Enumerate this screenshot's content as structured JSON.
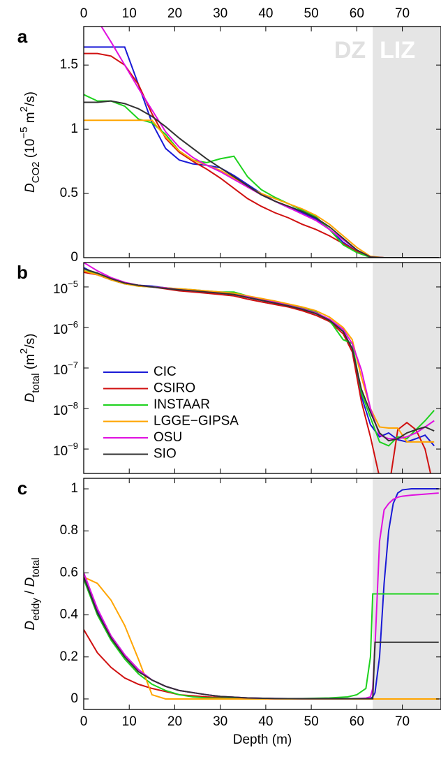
{
  "chart_data": [
    {
      "type": "line",
      "panel_label": "a",
      "ylabel": [
        {
          "text": "D",
          "style": "italic"
        },
        {
          "text": "CO2",
          "style": "sub"
        },
        {
          "text": " (10"
        },
        {
          "text": "−5",
          "style": "sup"
        },
        {
          "text": " m"
        },
        {
          "text": "2",
          "style": "sup"
        },
        {
          "text": "/s)"
        }
      ],
      "annotations": [
        "DZ",
        "LIZ"
      ],
      "lock_in_depth": 63.5,
      "xlim": [
        0,
        78.5
      ],
      "xticks": [
        0,
        10,
        20,
        30,
        40,
        50,
        60,
        70
      ],
      "xtick_side": "top",
      "ylim": [
        0,
        1.8
      ],
      "yticks": [
        0,
        0.5,
        1,
        1.5
      ],
      "x": [
        0,
        3,
        6,
        9,
        12,
        15,
        18,
        21,
        24,
        27,
        30,
        33,
        36,
        39,
        42,
        45,
        48,
        51,
        54,
        57,
        60,
        63,
        66,
        69,
        72,
        75,
        78
      ],
      "series": [
        {
          "name": "CIC",
          "color": "#1a1ad6",
          "values": [
            1.64,
            1.64,
            1.64,
            1.64,
            1.35,
            1.05,
            0.85,
            0.76,
            0.73,
            0.72,
            0.7,
            0.64,
            0.57,
            0.5,
            0.44,
            0.39,
            0.35,
            0.3,
            0.22,
            0.12,
            0.05,
            0.003,
            0,
            0,
            0,
            0,
            0
          ]
        },
        {
          "name": "CSIRO",
          "color": "#d01010",
          "values": [
            1.59,
            1.59,
            1.57,
            1.5,
            1.35,
            1.12,
            0.93,
            0.82,
            0.75,
            0.69,
            0.62,
            0.54,
            0.46,
            0.4,
            0.35,
            0.31,
            0.26,
            0.22,
            0.17,
            0.11,
            0.05,
            0.005,
            0,
            0,
            0,
            0,
            0
          ]
        },
        {
          "name": "INSTAAR",
          "color": "#1ed21e",
          "values": [
            1.27,
            1.22,
            1.22,
            1.18,
            1.08,
            1.05,
            0.96,
            0.83,
            0.76,
            0.74,
            0.77,
            0.79,
            0.63,
            0.53,
            0.47,
            0.42,
            0.37,
            0.32,
            0.22,
            0.1,
            0.04,
            0.002,
            0,
            0,
            0,
            0,
            0
          ]
        },
        {
          "name": "LGGE−GIPSA",
          "color": "#ffa500",
          "values": [
            1.07,
            1.07,
            1.07,
            1.07,
            1.07,
            1.07,
            0.94,
            0.83,
            0.76,
            0.72,
            0.68,
            0.62,
            0.55,
            0.5,
            0.46,
            0.42,
            0.38,
            0.33,
            0.26,
            0.17,
            0.08,
            0.01,
            0,
            0,
            0,
            0,
            0
          ]
        },
        {
          "name": "OSU",
          "color": "#e010e0",
          "values": [
            2.0,
            1.85,
            1.68,
            1.5,
            1.32,
            1.15,
            0.98,
            0.86,
            0.78,
            0.72,
            0.67,
            0.61,
            0.55,
            0.49,
            0.44,
            0.39,
            0.34,
            0.29,
            0.22,
            0.14,
            0.06,
            0.005,
            0,
            0,
            0,
            0,
            0
          ]
        },
        {
          "name": "SIO",
          "color": "#333333",
          "values": [
            1.21,
            1.21,
            1.22,
            1.2,
            1.16,
            1.1,
            1.02,
            0.93,
            0.85,
            0.77,
            0.7,
            0.63,
            0.56,
            0.49,
            0.44,
            0.4,
            0.36,
            0.31,
            0.24,
            0.15,
            0.06,
            0.005,
            0,
            0,
            0,
            0,
            0
          ]
        }
      ]
    },
    {
      "type": "line",
      "panel_label": "b",
      "yscale": "log",
      "legend": "center left",
      "ylabel": [
        {
          "text": "D",
          "style": "italic"
        },
        {
          "text": "total",
          "style": "sub"
        },
        {
          "text": " (m"
        },
        {
          "text": "2",
          "style": "sup"
        },
        {
          "text": "/s)"
        }
      ],
      "lock_in_depth": 63.5,
      "xlim": [
        0,
        78.5
      ],
      "xticks": [
        0,
        10,
        20,
        30,
        40,
        50,
        60,
        70
      ],
      "xtick_side": "none",
      "ylim": [
        2.5e-10,
        4e-05
      ],
      "yticks": [
        {
          "value": 1e-05,
          "label": "10",
          "exponent": "−5"
        },
        {
          "value": 1e-06,
          "label": "10",
          "exponent": "−6"
        },
        {
          "value": 1e-07,
          "label": "10",
          "exponent": "−7"
        },
        {
          "value": 1e-08,
          "label": "10",
          "exponent": "−8"
        },
        {
          "value": 1e-09,
          "label": "10",
          "exponent": "−9"
        }
      ],
      "x": [
        0,
        3,
        6,
        9,
        12,
        15,
        18,
        21,
        24,
        27,
        30,
        33,
        36,
        39,
        42,
        45,
        48,
        51,
        54,
        57,
        59,
        61,
        63,
        65,
        67,
        69,
        71,
        73,
        75,
        77
      ],
      "series": [
        {
          "name": "CIC",
          "color": "#1a1ad6",
          "values": [
            3e-05,
            2e-05,
            1.5e-05,
            1.2e-05,
            1.1e-05,
            1.05e-05,
            9.5e-06,
            8.5e-06,
            8e-06,
            7.5e-06,
            7e-06,
            6.5e-06,
            5.5e-06,
            4.7e-06,
            4e-06,
            3.4e-06,
            2.8e-06,
            2.2e-06,
            1.5e-06,
            8e-07,
            3e-07,
            2e-08,
            4e-09,
            2e-09,
            2.5e-09,
            1.7e-09,
            1.5e-09,
            1.8e-09,
            2.2e-09,
            1.2e-09
          ]
        },
        {
          "name": "CSIRO",
          "color": "#d01010",
          "values": [
            2.3e-05,
            2e-05,
            1.5e-05,
            1.2e-05,
            1.1e-05,
            1e-05,
            9e-06,
            8e-06,
            7.5e-06,
            7e-06,
            6.5e-06,
            6e-06,
            5e-06,
            4.3e-06,
            3.7e-06,
            3.2e-06,
            2.6e-06,
            2e-06,
            1.4e-06,
            7e-07,
            2.5e-07,
            1.5e-08,
            2e-09,
            2e-10,
            1e-10,
            3e-09,
            4.5e-09,
            3e-09,
            1e-09,
            1e-10
          ]
        },
        {
          "name": "INSTAAR",
          "color": "#1ed21e",
          "values": [
            2.5e-05,
            2.2e-05,
            1.5e-05,
            1.2e-05,
            1.05e-05,
            1e-05,
            9.5e-06,
            9e-06,
            8.5e-06,
            8e-06,
            7.5e-06,
            7.5e-06,
            6e-06,
            5e-06,
            4.3e-06,
            3.6e-06,
            3e-06,
            2.4e-06,
            1.5e-06,
            5e-07,
            4e-07,
            2.5e-08,
            6e-09,
            1.5e-09,
            1.2e-09,
            2e-09,
            1.8e-09,
            3e-09,
            5e-09,
            9e-09
          ]
        },
        {
          "name": "LGGE−GIPSA",
          "color": "#ffa500",
          "values": [
            2.5e-05,
            2e-05,
            1.5e-05,
            1.2e-05,
            1.05e-05,
            1e-05,
            9.5e-06,
            9e-06,
            8.5e-06,
            8e-06,
            7.5e-06,
            7e-06,
            6e-06,
            5.2e-06,
            4.5e-06,
            3.8e-06,
            3.2e-06,
            2.6e-06,
            1.8e-06,
            1e-06,
            5e-07,
            6e-08,
            1e-08,
            3.5e-09,
            3.3e-09,
            3.3e-09,
            1.5e-09,
            1.5e-09,
            1.5e-09,
            1.5e-09
          ]
        },
        {
          "name": "OSU",
          "color": "#e010e0",
          "values": [
            4e-05,
            2.5e-05,
            1.7e-05,
            1.3e-05,
            1.1e-05,
            1e-05,
            9.5e-06,
            8.5e-06,
            8e-06,
            7.5e-06,
            7e-06,
            6.5e-06,
            5.7e-06,
            4.8e-06,
            4.2e-06,
            3.5e-06,
            2.9e-06,
            2.3e-06,
            1.6e-06,
            9e-07,
            4e-07,
            9e-08,
            1e-08,
            2.2e-09,
            1.8e-09,
            1.8e-09,
            2e-09,
            2.5e-09,
            3.5e-09,
            5e-09
          ]
        },
        {
          "name": "SIO",
          "color": "#333333",
          "values": [
            2.8e-05,
            2.2e-05,
            1.6e-05,
            1.25e-05,
            1.1e-05,
            1e-05,
            9.2e-06,
            8.5e-06,
            8e-06,
            7.5e-06,
            7e-06,
            6.5e-06,
            5.5e-06,
            4.7e-06,
            4e-06,
            3.4e-06,
            2.8e-06,
            2.2e-06,
            1.5e-06,
            8e-07,
            3e-07,
            3e-08,
            8e-09,
            2.5e-09,
            1.6e-09,
            1.8e-09,
            2.5e-09,
            3e-09,
            3.5e-09,
            2.8e-09
          ]
        }
      ]
    },
    {
      "type": "line",
      "panel_label": "c",
      "ylabel": [
        {
          "text": "D",
          "style": "italic"
        },
        {
          "text": "eddy",
          "style": "sub"
        },
        {
          "text": " / "
        },
        {
          "text": "D",
          "style": "italic"
        },
        {
          "text": "total",
          "style": "sub"
        }
      ],
      "xlabel": "Depth (m)",
      "lock_in_depth": 63.5,
      "xlim": [
        0,
        78.5
      ],
      "xticks": [
        0,
        10,
        20,
        30,
        40,
        50,
        60,
        70
      ],
      "xtick_side": "bottom",
      "ylim": [
        -0.05,
        1.05
      ],
      "yticks": [
        0,
        0.2,
        0.4,
        0.6,
        0.8,
        1
      ],
      "x": [
        0,
        3,
        6,
        9,
        12,
        15,
        18,
        21,
        24,
        27,
        30,
        36,
        42,
        48,
        54,
        58,
        60,
        62,
        63,
        63.5,
        64,
        65,
        66,
        67,
        68,
        69,
        70,
        72,
        75,
        78
      ],
      "series": [
        {
          "name": "CIC",
          "color": "#1a1ad6",
          "values": [
            0.58,
            0.42,
            0.3,
            0.21,
            0.14,
            0.09,
            0.06,
            0.04,
            0.03,
            0.02,
            0.012,
            0.005,
            0.002,
            0.001,
            0.001,
            0.001,
            0.001,
            0.001,
            0.001,
            0.01,
            0.03,
            0.2,
            0.55,
            0.8,
            0.93,
            0.98,
            0.995,
            1.0,
            1.0,
            1.0
          ]
        },
        {
          "name": "CSIRO",
          "color": "#d01010",
          "values": [
            0.33,
            0.22,
            0.15,
            0.1,
            0.07,
            0.05,
            0.035,
            0.02,
            0.015,
            0.01,
            0.007,
            0.003,
            0.001,
            0,
            0,
            0,
            0,
            0,
            0,
            0,
            0,
            0,
            0,
            0,
            0,
            0,
            0,
            0,
            0,
            0
          ]
        },
        {
          "name": "INSTAAR",
          "color": "#1ed21e",
          "values": [
            0.57,
            0.4,
            0.28,
            0.19,
            0.12,
            0.07,
            0.04,
            0.02,
            0.01,
            0.005,
            0.003,
            0.001,
            0.001,
            0.002,
            0.005,
            0.01,
            0.02,
            0.05,
            0.2,
            0.5,
            0.5,
            0.5,
            0.5,
            0.5,
            0.5,
            0.5,
            0.5,
            0.5,
            0.5,
            0.5
          ]
        },
        {
          "name": "LGGE−GIPSA",
          "color": "#ffa500",
          "values": [
            0.58,
            0.55,
            0.47,
            0.35,
            0.19,
            0.02,
            0,
            0,
            0,
            0,
            0,
            0,
            0,
            0,
            0,
            0,
            0,
            0,
            0,
            0,
            0,
            0,
            0,
            0,
            0,
            0,
            0,
            0,
            0,
            0
          ]
        },
        {
          "name": "OSU",
          "color": "#e010e0",
          "values": [
            0.6,
            0.43,
            0.3,
            0.21,
            0.14,
            0.09,
            0.06,
            0.04,
            0.03,
            0.02,
            0.012,
            0.005,
            0.002,
            0.001,
            0.001,
            0.001,
            0.002,
            0.004,
            0.01,
            0.05,
            0.25,
            0.75,
            0.9,
            0.93,
            0.95,
            0.96,
            0.965,
            0.97,
            0.975,
            0.98
          ]
        },
        {
          "name": "SIO",
          "color": "#333333",
          "values": [
            0.58,
            0.41,
            0.29,
            0.2,
            0.13,
            0.09,
            0.06,
            0.04,
            0.03,
            0.02,
            0.012,
            0.005,
            0.002,
            0.001,
            0.001,
            0.001,
            0.001,
            0.001,
            0.001,
            0.001,
            0.27,
            0.27,
            0.27,
            0.27,
            0.27,
            0.27,
            0.27,
            0.27,
            0.27,
            0.27
          ]
        }
      ]
    }
  ]
}
